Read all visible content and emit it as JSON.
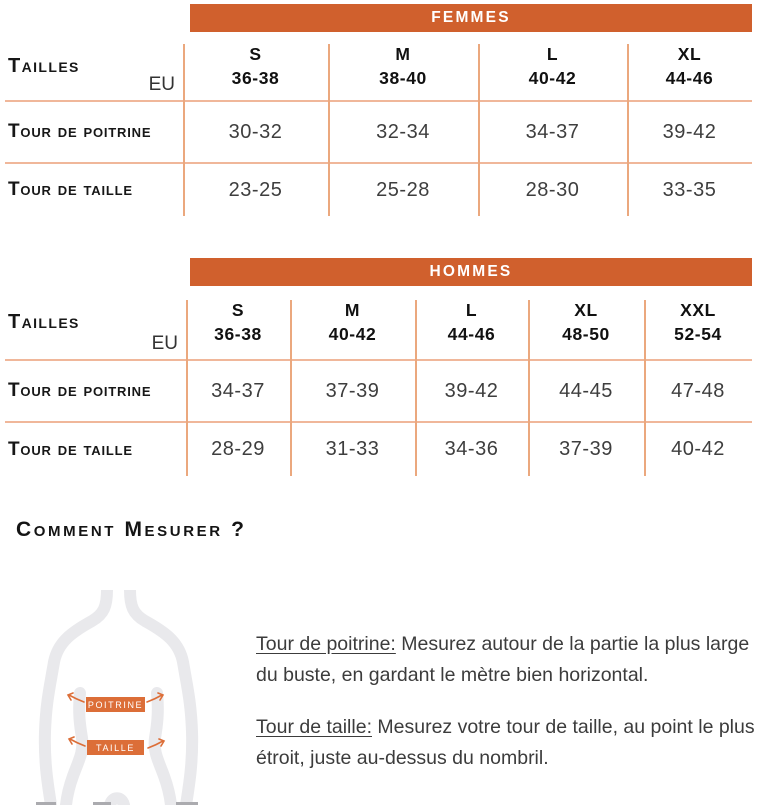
{
  "colors": {
    "accent_orange": "#D0602D",
    "label_orange": "#DC6E38",
    "line_salmon": "#F0B79A",
    "silhouette_gray": "#E9E9EC"
  },
  "tables": [
    {
      "title": "FEMMES",
      "corner_label": "Tailles",
      "unit_label": "EU",
      "columns": [
        {
          "size": "S",
          "eu": "36-38"
        },
        {
          "size": "M",
          "eu": "38-40"
        },
        {
          "size": "L",
          "eu": "40-42"
        },
        {
          "size": "XL",
          "eu": "44-46"
        }
      ],
      "rows": [
        {
          "label": "Tour de poitrine",
          "values": [
            "30-32",
            "32-34",
            "34-37",
            "39-42"
          ]
        },
        {
          "label": "Tour de taille",
          "values": [
            "23-25",
            "25-28",
            "28-30",
            "33-35"
          ]
        }
      ]
    },
    {
      "title": "HOMMES",
      "corner_label": "Tailles",
      "unit_label": "EU",
      "columns": [
        {
          "size": "S",
          "eu": "36-38"
        },
        {
          "size": "M",
          "eu": "40-42"
        },
        {
          "size": "L",
          "eu": "44-46"
        },
        {
          "size": "XL",
          "eu": "48-50"
        },
        {
          "size": "XXL",
          "eu": "52-54"
        }
      ],
      "rows": [
        {
          "label": "Tour de poitrine",
          "values": [
            "34-37",
            "37-39",
            "39-42",
            "44-45",
            "47-48"
          ]
        },
        {
          "label": "Tour de taille",
          "values": [
            "28-29",
            "31-33",
            "34-36",
            "37-39",
            "40-42"
          ]
        }
      ]
    }
  ],
  "how_to_measure": {
    "heading": "Comment Mesurer ?",
    "diagram": {
      "chest_label": "POITRINE",
      "waist_label": "TAILLE"
    },
    "instructions": [
      {
        "term": "Tour de poitrine:",
        "text": " Mesurez autour de la partie la plus large du buste, en gardant le mètre bien horizontal."
      },
      {
        "term": "Tour de taille:",
        "text": " Mesurez votre tour de taille, au point le plus étroit, juste au-dessus du nombril."
      }
    ]
  }
}
